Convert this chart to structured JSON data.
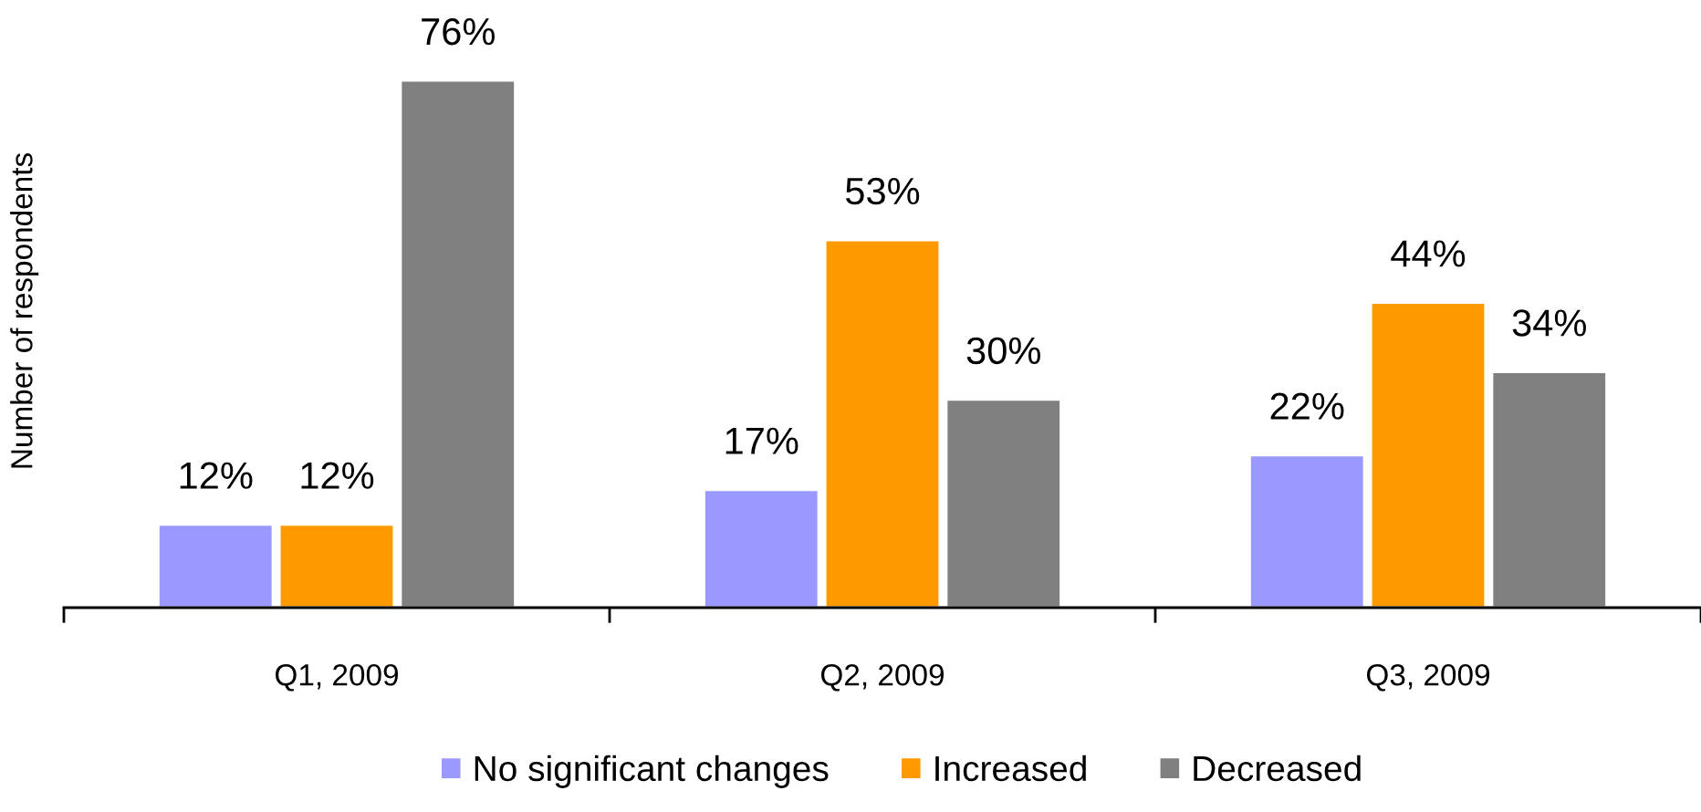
{
  "chart_data": {
    "type": "bar",
    "ylabel": "Number of respondents",
    "categories": [
      "Q1, 2009",
      "Q2, 2009",
      "Q3, 2009"
    ],
    "series": [
      {
        "name": "No significant changes",
        "color": "#9999ff",
        "values": [
          12,
          17,
          22
        ],
        "value_labels": [
          "12%",
          "17%",
          "22%"
        ]
      },
      {
        "name": "Increased",
        "color": "#ff9900",
        "values": [
          12,
          53,
          44
        ],
        "value_labels": [
          "12%",
          "53%",
          "44%"
        ]
      },
      {
        "name": "Decreased",
        "color": "#808080",
        "values": [
          76,
          30,
          34
        ],
        "value_labels": [
          "76%",
          "30%",
          "34%"
        ]
      }
    ],
    "grid": false,
    "legend": "bottom"
  }
}
